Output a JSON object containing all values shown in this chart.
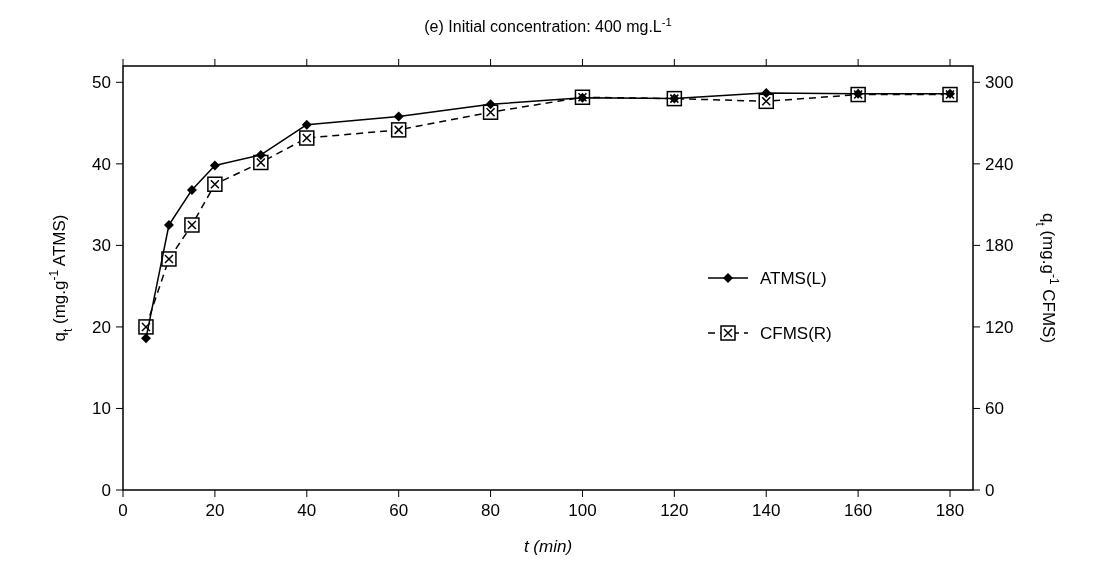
{
  "chart_data": {
    "type": "line",
    "title": "(e) Initial concentration: 400 mg.L$^{-1}$",
    "xlabel": "t (min)",
    "ylabel": "q$_{t}$ (mg.g$^{-1}$ ATMS)",
    "y2label": "q$_{t}$ (mg.g$^{-1}$ CFMS)",
    "x": [
      5,
      10,
      15,
      20,
      30,
      40,
      60,
      80,
      100,
      120,
      140,
      160,
      180
    ],
    "xlim": [
      0,
      185
    ],
    "xticks": [
      0,
      20,
      40,
      60,
      80,
      100,
      120,
      140,
      160,
      180
    ],
    "ylim": [
      0,
      52
    ],
    "yticks": [
      0,
      10,
      20,
      30,
      40,
      50
    ],
    "y2lim": [
      0,
      312
    ],
    "y2ticks": [
      0,
      60,
      120,
      180,
      240,
      300
    ],
    "legend": "right",
    "grid": false,
    "series": [
      {
        "name": "ATMS(L)",
        "color": "#000000",
        "marker": "diamond",
        "line_style": "solid",
        "values": [
          18.6,
          32.5,
          36.8,
          39.8,
          41.1,
          44.8,
          45.8,
          47.3,
          48.1,
          48.0,
          48.7,
          48.6,
          48.6
        ]
      },
      {
        "name": "CFMS(R)",
        "color": "#000000",
        "marker": "square",
        "line_style": "dashed",
        "axis": "y2",
        "values": [
          120,
          170,
          195,
          225,
          241,
          259,
          265,
          278,
          289,
          288,
          286,
          291,
          291
        ]
      }
    ]
  }
}
